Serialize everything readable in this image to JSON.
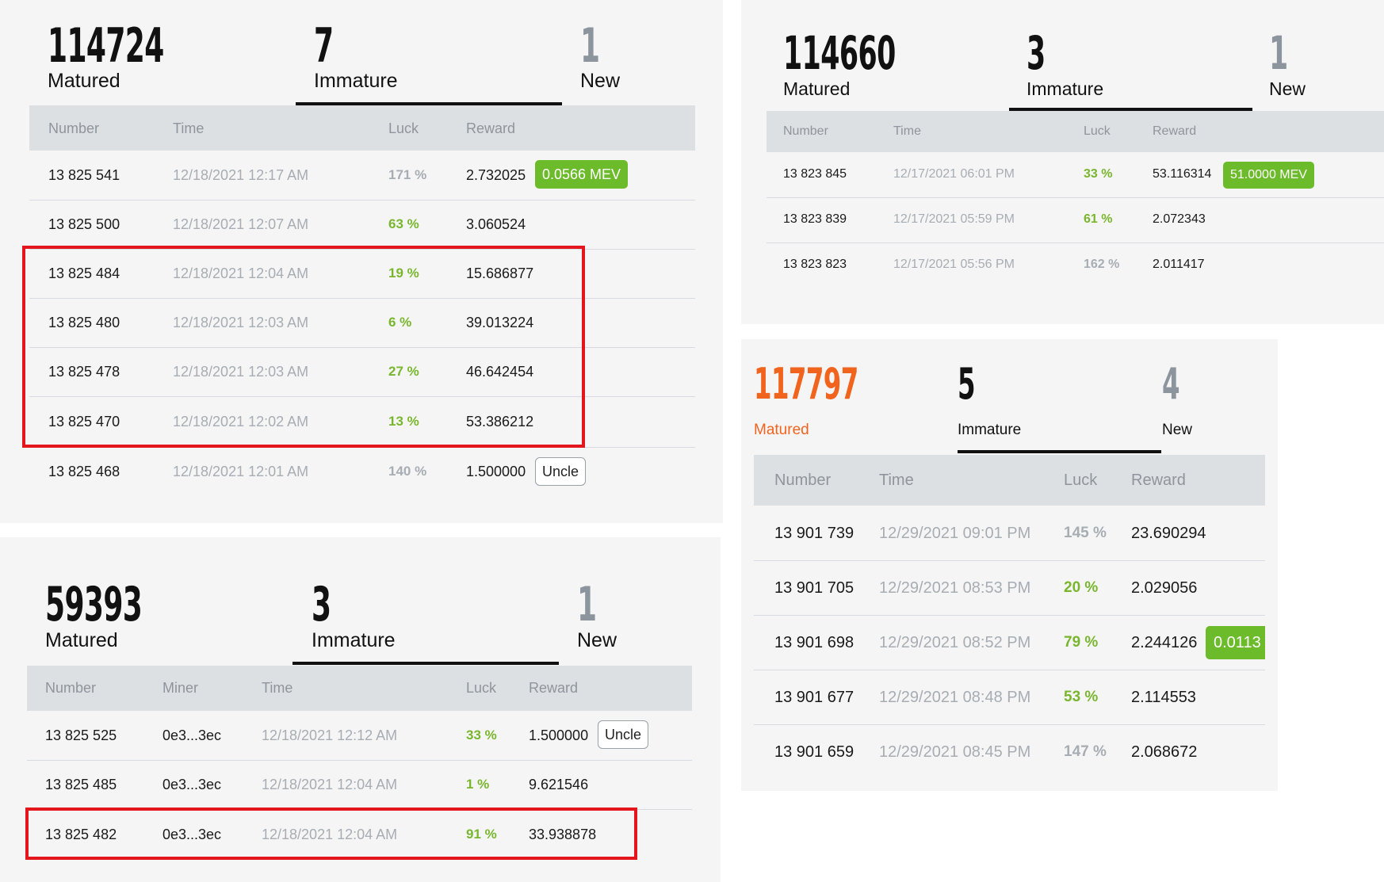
{
  "panel_a": {
    "matured_value": "114724",
    "matured_label": "Matured",
    "immature_value": "7",
    "immature_label": "Immature",
    "new_value": "1",
    "new_label": "New",
    "columns": [
      "Number",
      "Time",
      "Luck",
      "Reward"
    ],
    "rows": [
      {
        "number": "13 825 541",
        "time": "12/18/2021 12:17 AM",
        "luck": "171 %",
        "reward": "2.732025",
        "badge": "0.0566 MEV"
      },
      {
        "number": "13 825 500",
        "time": "12/18/2021 12:07 AM",
        "luck": "63 %",
        "reward": "3.060524"
      },
      {
        "number": "13 825 484",
        "time": "12/18/2021 12:04 AM",
        "luck": "19 %",
        "reward": "15.686877"
      },
      {
        "number": "13 825 480",
        "time": "12/18/2021 12:03 AM",
        "luck": "6 %",
        "reward": "39.013224"
      },
      {
        "number": "13 825 478",
        "time": "12/18/2021 12:03 AM",
        "luck": "27 %",
        "reward": "46.642454"
      },
      {
        "number": "13 825 470",
        "time": "12/18/2021 12:02 AM",
        "luck": "13 %",
        "reward": "53.386212"
      },
      {
        "number": "13 825 468",
        "time": "12/18/2021 12:01 AM",
        "luck": "140 %",
        "reward": "1.500000",
        "badge": "Uncle"
      }
    ]
  },
  "panel_b": {
    "matured_value": "114660",
    "matured_label": "Matured",
    "immature_value": "3",
    "immature_label": "Immature",
    "new_value": "1",
    "new_label": "New",
    "columns": [
      "Number",
      "Time",
      "Luck",
      "Reward"
    ],
    "rows": [
      {
        "number": "13 823 845",
        "time": "12/17/2021 06:01 PM",
        "luck": "33 %",
        "reward": "53.116314",
        "badge": "51.0000 MEV"
      },
      {
        "number": "13 823 839",
        "time": "12/17/2021 05:59 PM",
        "luck": "61 %",
        "reward": "2.072343"
      },
      {
        "number": "13 823 823",
        "time": "12/17/2021 05:56 PM",
        "luck": "162 %",
        "reward": "2.011417"
      }
    ]
  },
  "panel_c": {
    "matured_value": "59393",
    "matured_label": "Matured",
    "immature_value": "3",
    "immature_label": "Immature",
    "new_value": "1",
    "new_label": "New",
    "columns": [
      "Number",
      "Miner",
      "Time",
      "Luck",
      "Reward"
    ],
    "rows": [
      {
        "number": "13 825 525",
        "miner": "0e3...3ec",
        "time": "12/18/2021 12:12 AM",
        "luck": "33 %",
        "reward": "1.500000",
        "badge": "Uncle"
      },
      {
        "number": "13 825 485",
        "miner": "0e3...3ec",
        "time": "12/18/2021 12:04 AM",
        "luck": "1 %",
        "reward": "9.621546"
      },
      {
        "number": "13 825 482",
        "miner": "0e3...3ec",
        "time": "12/18/2021 12:04 AM",
        "luck": "91 %",
        "reward": "33.938878"
      }
    ]
  },
  "panel_d": {
    "matured_value": "117797",
    "matured_label": "Matured",
    "immature_value": "5",
    "immature_label": "Immature",
    "new_value": "4",
    "new_label": "New",
    "columns": [
      "Number",
      "Time",
      "Luck",
      "Reward"
    ],
    "rows": [
      {
        "number": "13 901 739",
        "time": "12/29/2021 09:01 PM",
        "luck": "145 %",
        "reward": "23.690294"
      },
      {
        "number": "13 901 705",
        "time": "12/29/2021 08:53 PM",
        "luck": "20 %",
        "reward": "2.029056"
      },
      {
        "number": "13 901 698",
        "time": "12/29/2021 08:52 PM",
        "luck": "79 %",
        "reward": "2.244126",
        "badge": "0.0113"
      },
      {
        "number": "13 901 677",
        "time": "12/29/2021 08:48 PM",
        "luck": "53 %",
        "reward": "2.114553"
      },
      {
        "number": "13 901 659",
        "time": "12/29/2021 08:45 PM",
        "luck": "147 %",
        "reward": "2.068672"
      }
    ]
  },
  "colors": {
    "luck_good": "#79b62e",
    "luck_neutral": "#a7adb3",
    "mev_badge": "#6cbb2a",
    "highlight_box": "#e3161d",
    "matured_accent": "#f0641e",
    "new_count_muted": "#8c959d",
    "header_bg": "#dde0e3"
  }
}
